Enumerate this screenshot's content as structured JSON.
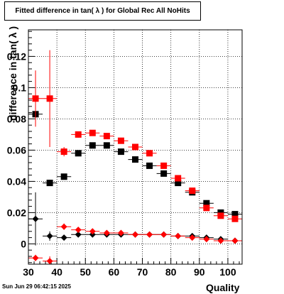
{
  "chart_data": {
    "type": "scatter",
    "title": "Fitted difference in tan( λ ) for Global Rec All NoHits",
    "xlabel": "Quality",
    "ylabel": "difference in tan( λ )",
    "xlim": [
      30,
      105
    ],
    "ylim": [
      -0.013,
      0.137
    ],
    "x_ticks": [
      30,
      40,
      50,
      60,
      70,
      80,
      90,
      100
    ],
    "y_ticks": [
      0,
      0.02,
      0.04,
      0.06,
      0.08,
      0.1,
      0.12
    ],
    "x_tick_labels": [
      "30",
      "40",
      "50",
      "60",
      "70",
      "80",
      "90",
      "100"
    ],
    "y_tick_labels": [
      "0",
      "0.02",
      "0.04",
      "0.06",
      "0.08",
      "0.1",
      "0.12"
    ],
    "grid": true,
    "legend": "none",
    "series": [
      {
        "color": "#000000",
        "marker": "square",
        "x": [
          32.5,
          37.5,
          42.5,
          47.5,
          52.5,
          57.5,
          62.5,
          67.5,
          72.5,
          77.5,
          82.5,
          87.5,
          92.5,
          97.5,
          102.5
        ],
        "y": [
          0.083,
          0.039,
          0.043,
          0.058,
          0.063,
          0.063,
          0.059,
          0.054,
          0.05,
          0.045,
          0.039,
          0.033,
          0.026,
          0.02,
          0.019
        ],
        "yerr": [
          0.002,
          0.002,
          0.001,
          0.001,
          0.001,
          0.001,
          0.001,
          0.001,
          0.001,
          0.001,
          0.001,
          0.001,
          0.001,
          0.001,
          0.001
        ]
      },
      {
        "color": "#ff0000",
        "marker": "square",
        "x": [
          32.5,
          37.5,
          42.5,
          47.5,
          52.5,
          57.5,
          62.5,
          67.5,
          72.5,
          77.5,
          82.5,
          87.5,
          92.5,
          97.5,
          102.5
        ],
        "y": [
          0.093,
          0.093,
          0.059,
          0.07,
          0.071,
          0.069,
          0.066,
          0.062,
          0.058,
          0.05,
          0.042,
          0.034,
          0.023,
          0.018,
          0.016
        ],
        "yerr": [
          0.018,
          0.031,
          0.003,
          0.002,
          0.001,
          0.001,
          0.001,
          0.001,
          0.001,
          0.001,
          0.001,
          0.001,
          0.001,
          0.001,
          0.001
        ]
      },
      {
        "color": "#000000",
        "marker": "diamond",
        "x": [
          32.5,
          37.5,
          42.5,
          47.5,
          52.5,
          57.5,
          62.5,
          67.5,
          72.5,
          77.5,
          82.5,
          87.5,
          92.5,
          97.5,
          102.5
        ],
        "y": [
          0.016,
          0.005,
          0.004,
          0.006,
          0.006,
          0.006,
          0.006,
          0.006,
          0.006,
          0.006,
          0.005,
          0.005,
          0.004,
          0.003,
          0.002
        ],
        "yerr": [
          0.017,
          0.003,
          0.001,
          0.001,
          0.001,
          0.001,
          0.001,
          0.001,
          0.001,
          0.001,
          0.001,
          0.001,
          0.001,
          0.001,
          0.001
        ]
      },
      {
        "color": "#ff0000",
        "marker": "diamond",
        "x": [
          32.5,
          37.5,
          42.5,
          47.5,
          52.5,
          57.5,
          62.5,
          67.5,
          72.5,
          77.5,
          82.5,
          87.5,
          92.5,
          97.5,
          102.5
        ],
        "y": [
          -0.009,
          -0.011,
          0.011,
          0.009,
          0.008,
          0.007,
          0.007,
          0.006,
          0.006,
          0.006,
          0.005,
          0.004,
          0.003,
          0.002,
          0.002
        ],
        "yerr": [
          0.002,
          0.003,
          0.002,
          0.001,
          0.001,
          0.001,
          0.001,
          0.001,
          0.001,
          0.001,
          0.001,
          0.001,
          0.001,
          0.001,
          0.001
        ]
      }
    ]
  },
  "footer": {
    "timestamp": "Sun Jun 29 06:42:15 2025"
  }
}
